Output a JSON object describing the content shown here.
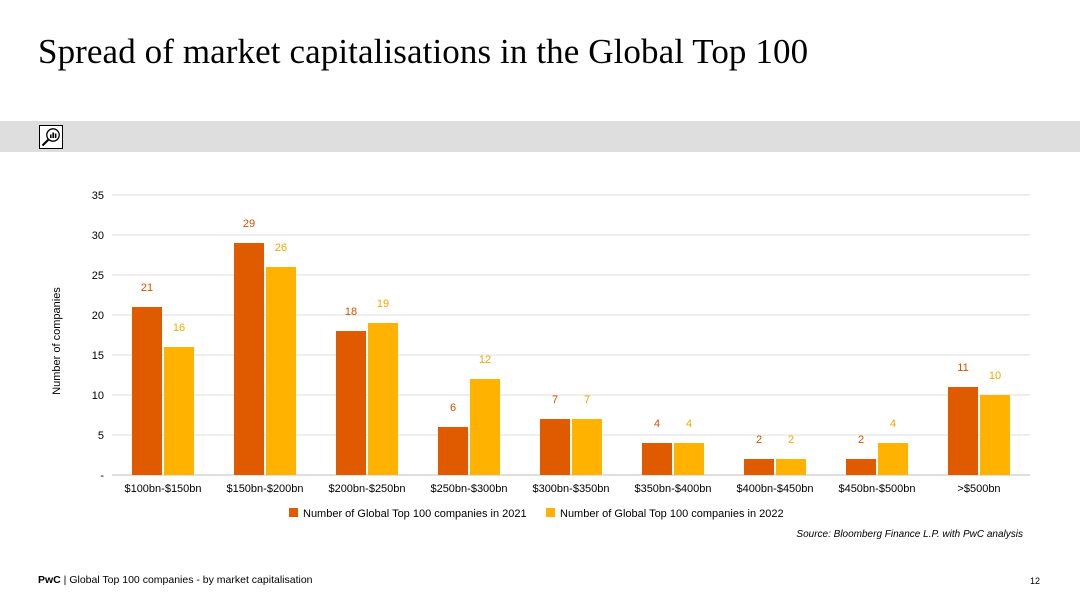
{
  "slide": {
    "title": "Spread of market capitalisations in the Global Top 100",
    "source": "Source: Bloomberg Finance L.P. with PwC analysis",
    "footer_brand": "PwC",
    "footer_separator": " | ",
    "footer_text": "Global Top 100 companies - by market capitalisation",
    "page_number": "12",
    "band_icon": "magnifier-chart-icon"
  },
  "chart_data": {
    "type": "bar",
    "title": "",
    "xlabel": "",
    "ylabel": "Number of companies",
    "ylim": [
      0,
      35
    ],
    "yticks": [
      0,
      5,
      10,
      15,
      20,
      25,
      30,
      35
    ],
    "ytick_labels": [
      "-",
      "5",
      "10",
      "15",
      "20",
      "25",
      "30",
      "35"
    ],
    "grid": true,
    "legend_position": "bottom",
    "categories": [
      "$100bn-$150bn",
      "$150bn-$200bn",
      "$200bn-$250bn",
      "$250bn-$300bn",
      "$300bn-$350bn",
      "$350bn-$400bn",
      "$400bn-$450bn",
      "$450bn-$500bn",
      ">$500bn"
    ],
    "series": [
      {
        "name": "Number of Global Top 100 companies in 2021",
        "color": "#e05a00",
        "label_color": "#d45000",
        "values": [
          21,
          29,
          18,
          6,
          7,
          4,
          2,
          2,
          11
        ]
      },
      {
        "name": "Number of Global Top 100 companies in 2022",
        "color": "#ffb300",
        "label_color": "#f0a800",
        "values": [
          16,
          26,
          19,
          12,
          7,
          4,
          2,
          4,
          10
        ]
      }
    ]
  }
}
